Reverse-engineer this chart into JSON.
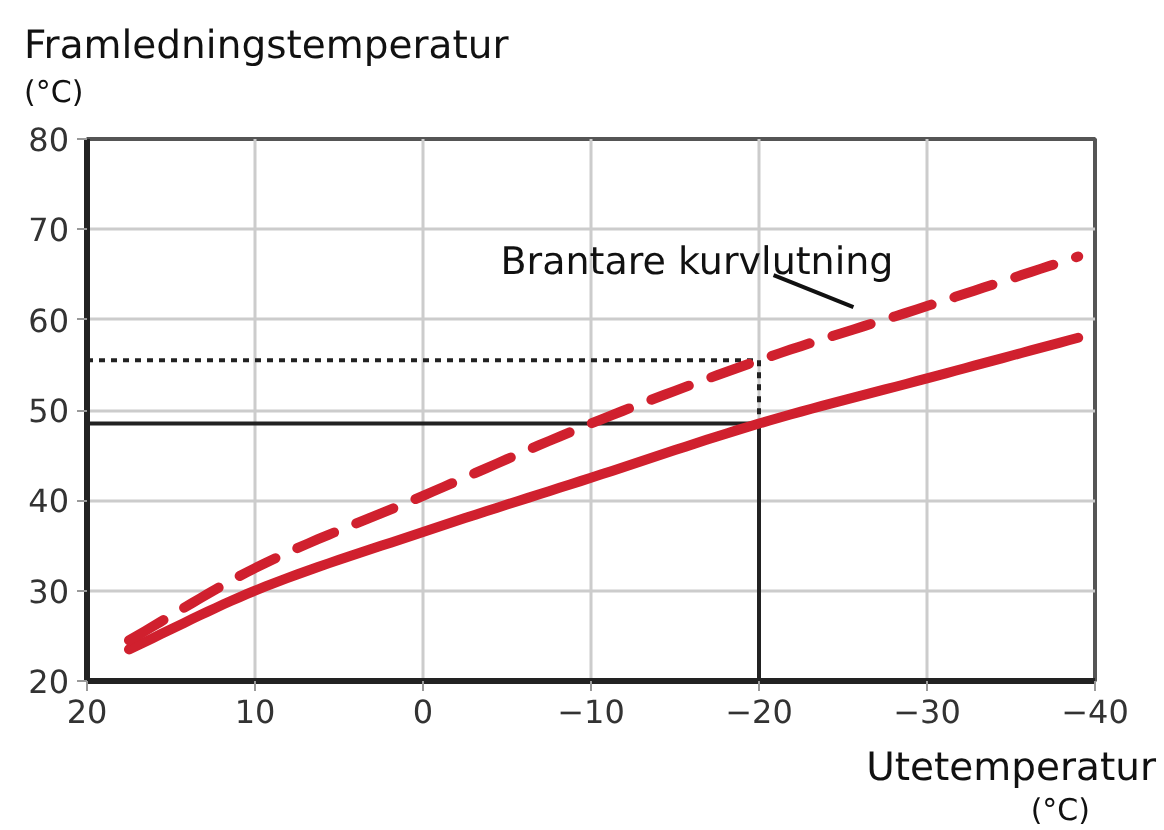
{
  "chart_data": {
    "type": "line",
    "xlabel": "Utetemperatur (°C)",
    "ylabel": "Framledningstemperatur (°C)",
    "xlim": [
      20,
      -40
    ],
    "ylim": [
      20,
      80
    ],
    "xticks": [
      20,
      10,
      0,
      -10,
      -20,
      -30,
      -40
    ],
    "yticks": [
      20,
      30,
      40,
      50,
      60,
      70,
      80
    ],
    "grid": true,
    "series": [
      {
        "x": [
          20,
          -20,
          -20
        ],
        "values": [
          48.5,
          48.5,
          20
        ],
        "color": "#222222",
        "line_style": "solid"
      },
      {
        "x": [
          20,
          -20,
          -20
        ],
        "values": [
          55.5,
          55.5,
          48.5
        ],
        "color": "#222222",
        "line_style": "dotted"
      },
      {
        "x": [
          17.5,
          10,
          0,
          -10,
          -20,
          -30,
          -39
        ],
        "values": [
          23.5,
          30,
          36.5,
          42.5,
          48.5,
          53.5,
          58
        ],
        "color": "#d0202e",
        "line_style": "solid"
      },
      {
        "x": [
          17.5,
          10,
          0,
          -10,
          -20,
          -30,
          -39
        ],
        "values": [
          24.5,
          32.5,
          40.5,
          48.5,
          55.5,
          61.5,
          67
        ],
        "color": "#d0202e",
        "line_style": "dashed"
      }
    ],
    "annotations": [
      {
        "text": "Brantare kurvlutning",
        "x": -27.5,
        "y": 60
      }
    ]
  }
}
